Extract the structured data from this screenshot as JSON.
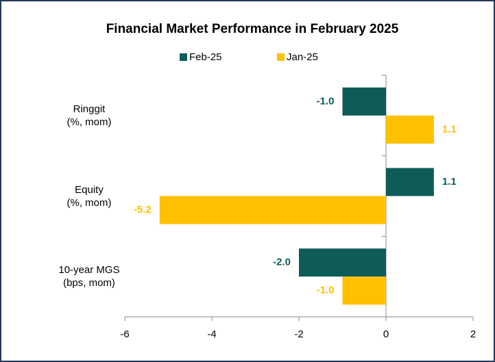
{
  "chart_data": {
    "type": "hbar",
    "title": "Financial Market Performance in February 2025",
    "categories": [
      "Ringgit\n(%, mom)",
      "Equity\n(%, mom)",
      "10-year MGS\n(bps, mom)"
    ],
    "series": [
      {
        "name": "Feb-25",
        "color": "#0e5c57",
        "values": [
          -1.0,
          1.1,
          -2.0
        ],
        "value_labels": [
          "-1.0",
          "1.1",
          "-2.0"
        ]
      },
      {
        "name": "Jan-25",
        "color": "#ffc000",
        "values": [
          1.1,
          -5.2,
          -1.0
        ],
        "value_labels": [
          "1.1",
          "-5.2",
          "-1.0"
        ]
      }
    ],
    "xlim": [
      -6,
      2
    ],
    "xticks": [
      -6,
      -4,
      -2,
      0,
      2
    ]
  }
}
